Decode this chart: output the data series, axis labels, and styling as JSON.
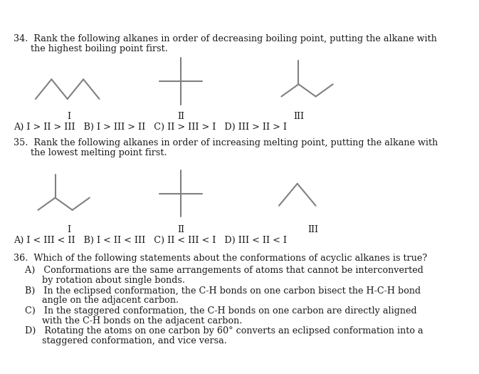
{
  "background_color": "#ffffff",
  "figsize": [
    6.73,
    5.25
  ],
  "dpi": 100,
  "q34_text1": "34.  Rank the following alkanes in order of decreasing boiling point, putting the alkane with",
  "q34_text2": "      the highest boiling point first.",
  "q34_answers": "A) I > II > III   B) I > III > II   C) II > III > I   D) III > II > I",
  "q35_text1": "35.  Rank the following alkanes in order of increasing melting point, putting the alkane with",
  "q35_text2": "      the lowest melting point first.",
  "q35_answers": "A) I < III < II   B) I < II < III   C) II < III < I   D) III < II < I",
  "q36_text": "36.  Which of the following statements about the conformations of acyclic alkanes is true?",
  "q36_A1": "    A)   Conformations are the same arrangements of atoms that cannot be interconverted",
  "q36_A2": "          by rotation about single bonds.",
  "q36_B1": "    B)   In the eclipsed conformation, the C-H bonds on one carbon bisect the H-C-H bond",
  "q36_B2": "          angle on the adjacent carbon.",
  "q36_C1": "    C)   In the staggered conformation, the C-H bonds on one carbon are directly aligned",
  "q36_C2": "          with the C-H bonds on the adjacent carbon.",
  "q36_D1": "    D)   Rotating the atoms on one carbon by 60° converts an eclipsed conformation into a",
  "q36_D2": "          staggered conformation, and vice versa.",
  "text_color": "#1a1a1a",
  "line_color": "#808080",
  "font_size_main": 9.2,
  "font_size_label": 9.0
}
